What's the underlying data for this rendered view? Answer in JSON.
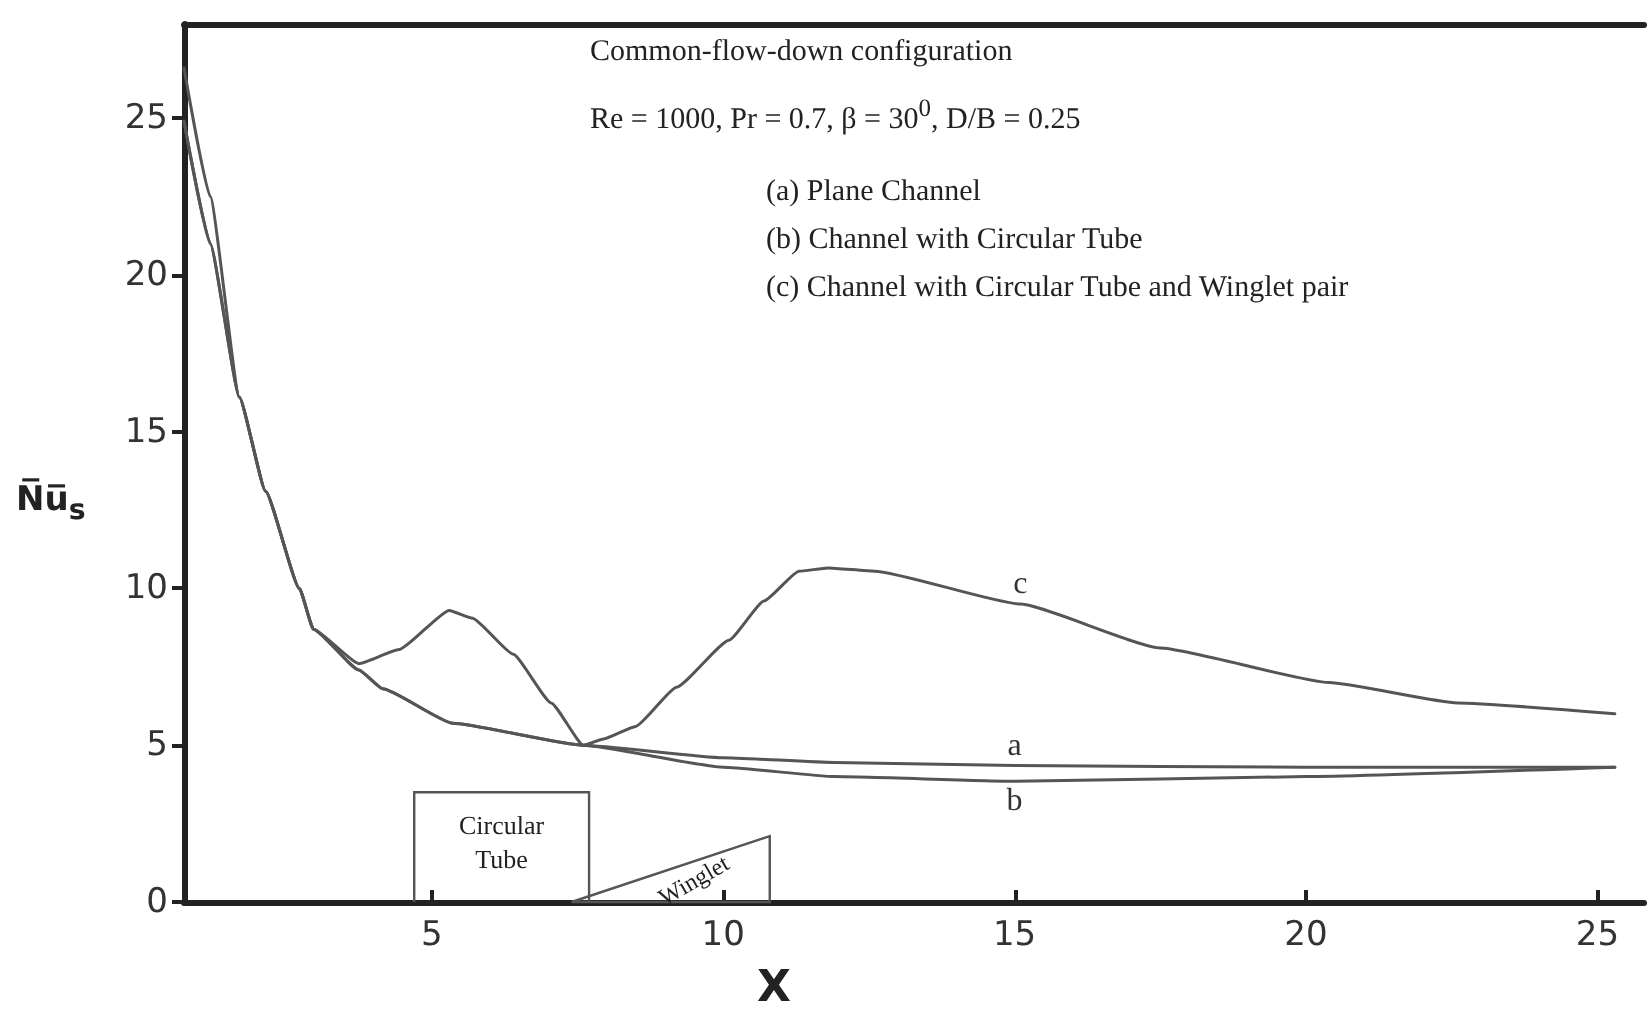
{
  "chart_data": {
    "type": "line",
    "title": "Common-flow-down configuration",
    "subtitle": "Re = 1000, Pr = 0.7, β = 30$^{0}$, D/B = 0.25",
    "xlabel": "X",
    "ylabel": "N̅u̅$_{s}$",
    "annotations": [
      "(a) Plane Channel",
      "(b) Channel with Circular Tube",
      "(c) Channel with Circular Tube and Winglet pair",
      "Circular Tube",
      "Winglet"
    ],
    "series": [
      {
        "name": "a",
        "color": "#555555",
        "x": [
          0.75,
          1.2,
          1.7,
          2.15,
          2.73,
          2.97,
          3.75,
          4.16,
          5.36,
          7.6,
          10,
          11.9,
          15,
          20,
          25.3
        ],
        "values": [
          26.6,
          22.5,
          16.1,
          13.1,
          10,
          8.7,
          7.4,
          6.8,
          5.7,
          5.0,
          4.6,
          4.45,
          4.35,
          4.3,
          4.3
        ]
      },
      {
        "name": "b",
        "color": "#555555",
        "x": [
          0.75,
          1.2,
          1.7,
          2.15,
          2.73,
          2.97,
          3.75,
          4.16,
          5.36,
          7.6,
          10,
          11.9,
          15,
          20,
          25.3
        ],
        "values": [
          24.9,
          21,
          16.1,
          13.1,
          10,
          8.7,
          7.4,
          6.8,
          5.7,
          5.0,
          4.3,
          4.0,
          3.85,
          4.0,
          4.3
        ]
      },
      {
        "name": "c",
        "color": "#555555",
        "x": [
          0.75,
          1.2,
          1.7,
          2.15,
          2.73,
          2.97,
          3.75,
          4.44,
          5.3,
          5.7,
          6.4,
          7.05,
          7.6,
          7.95,
          8.5,
          9.2,
          10.1,
          10.7,
          11.3,
          11.8,
          12.6,
          15.1,
          17.5,
          20.4,
          22.6,
          25.3
        ],
        "values": [
          24.9,
          21,
          16.1,
          13.1,
          10,
          8.7,
          7.6,
          8.05,
          9.3,
          9.05,
          7.9,
          6.35,
          5.0,
          5.2,
          5.6,
          6.85,
          8.35,
          9.6,
          10.55,
          10.65,
          10.55,
          9.5,
          8.1,
          7.0,
          6.35,
          6.0
        ]
      }
    ],
    "xlim": [
      0.75,
      25.8
    ],
    "xticks": [
      5,
      10,
      15,
      20,
      25
    ],
    "ylim": [
      0,
      28
    ],
    "yticks": [
      0,
      5,
      10,
      15,
      20,
      25
    ],
    "grid": false,
    "legend": false,
    "marker": "none",
    "line_style": "solid"
  }
}
